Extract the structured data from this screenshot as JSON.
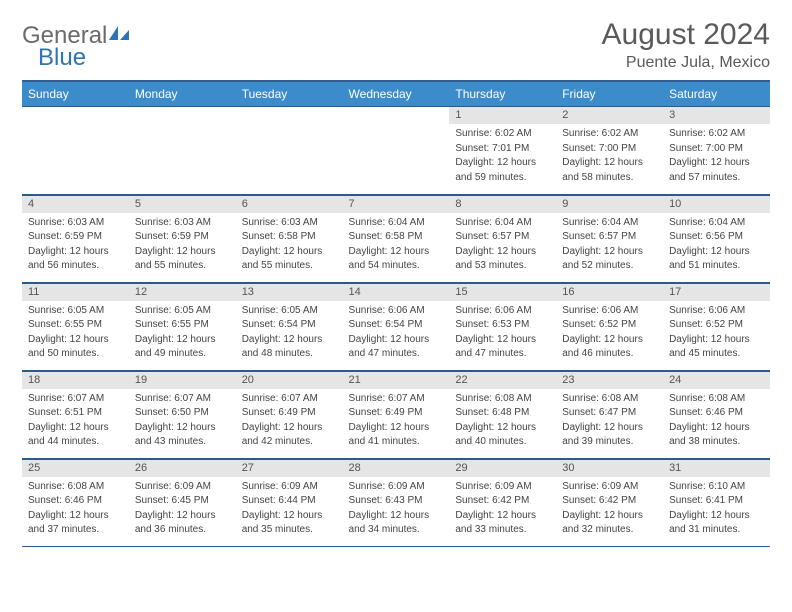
{
  "logo": {
    "general": "General",
    "blue": "Blue",
    "accent_color": "#2f74b5",
    "text_color": "#6a6a6a"
  },
  "header": {
    "title": "August 2024",
    "location": "Puente Jula, Mexico"
  },
  "calendar": {
    "header_bg": "#3c8ccc",
    "header_fg": "#ffffff",
    "daynum_bg": "#e5e5e5",
    "rule_color": "#2b5b8a",
    "days": [
      "Sunday",
      "Monday",
      "Tuesday",
      "Wednesday",
      "Thursday",
      "Friday",
      "Saturday"
    ],
    "weeks": [
      [
        {
          "blank": true
        },
        {
          "blank": true
        },
        {
          "blank": true
        },
        {
          "blank": true
        },
        {
          "num": "1",
          "sunrise": "6:02 AM",
          "sunset": "7:01 PM",
          "daylight": "12 hours and 59 minutes."
        },
        {
          "num": "2",
          "sunrise": "6:02 AM",
          "sunset": "7:00 PM",
          "daylight": "12 hours and 58 minutes."
        },
        {
          "num": "3",
          "sunrise": "6:02 AM",
          "sunset": "7:00 PM",
          "daylight": "12 hours and 57 minutes."
        }
      ],
      [
        {
          "num": "4",
          "sunrise": "6:03 AM",
          "sunset": "6:59 PM",
          "daylight": "12 hours and 56 minutes."
        },
        {
          "num": "5",
          "sunrise": "6:03 AM",
          "sunset": "6:59 PM",
          "daylight": "12 hours and 55 minutes."
        },
        {
          "num": "6",
          "sunrise": "6:03 AM",
          "sunset": "6:58 PM",
          "daylight": "12 hours and 55 minutes."
        },
        {
          "num": "7",
          "sunrise": "6:04 AM",
          "sunset": "6:58 PM",
          "daylight": "12 hours and 54 minutes."
        },
        {
          "num": "8",
          "sunrise": "6:04 AM",
          "sunset": "6:57 PM",
          "daylight": "12 hours and 53 minutes."
        },
        {
          "num": "9",
          "sunrise": "6:04 AM",
          "sunset": "6:57 PM",
          "daylight": "12 hours and 52 minutes."
        },
        {
          "num": "10",
          "sunrise": "6:04 AM",
          "sunset": "6:56 PM",
          "daylight": "12 hours and 51 minutes."
        }
      ],
      [
        {
          "num": "11",
          "sunrise": "6:05 AM",
          "sunset": "6:55 PM",
          "daylight": "12 hours and 50 minutes."
        },
        {
          "num": "12",
          "sunrise": "6:05 AM",
          "sunset": "6:55 PM",
          "daylight": "12 hours and 49 minutes."
        },
        {
          "num": "13",
          "sunrise": "6:05 AM",
          "sunset": "6:54 PM",
          "daylight": "12 hours and 48 minutes."
        },
        {
          "num": "14",
          "sunrise": "6:06 AM",
          "sunset": "6:54 PM",
          "daylight": "12 hours and 47 minutes."
        },
        {
          "num": "15",
          "sunrise": "6:06 AM",
          "sunset": "6:53 PM",
          "daylight": "12 hours and 47 minutes."
        },
        {
          "num": "16",
          "sunrise": "6:06 AM",
          "sunset": "6:52 PM",
          "daylight": "12 hours and 46 minutes."
        },
        {
          "num": "17",
          "sunrise": "6:06 AM",
          "sunset": "6:52 PM",
          "daylight": "12 hours and 45 minutes."
        }
      ],
      [
        {
          "num": "18",
          "sunrise": "6:07 AM",
          "sunset": "6:51 PM",
          "daylight": "12 hours and 44 minutes."
        },
        {
          "num": "19",
          "sunrise": "6:07 AM",
          "sunset": "6:50 PM",
          "daylight": "12 hours and 43 minutes."
        },
        {
          "num": "20",
          "sunrise": "6:07 AM",
          "sunset": "6:49 PM",
          "daylight": "12 hours and 42 minutes."
        },
        {
          "num": "21",
          "sunrise": "6:07 AM",
          "sunset": "6:49 PM",
          "daylight": "12 hours and 41 minutes."
        },
        {
          "num": "22",
          "sunrise": "6:08 AM",
          "sunset": "6:48 PM",
          "daylight": "12 hours and 40 minutes."
        },
        {
          "num": "23",
          "sunrise": "6:08 AM",
          "sunset": "6:47 PM",
          "daylight": "12 hours and 39 minutes."
        },
        {
          "num": "24",
          "sunrise": "6:08 AM",
          "sunset": "6:46 PM",
          "daylight": "12 hours and 38 minutes."
        }
      ],
      [
        {
          "num": "25",
          "sunrise": "6:08 AM",
          "sunset": "6:46 PM",
          "daylight": "12 hours and 37 minutes."
        },
        {
          "num": "26",
          "sunrise": "6:09 AM",
          "sunset": "6:45 PM",
          "daylight": "12 hours and 36 minutes."
        },
        {
          "num": "27",
          "sunrise": "6:09 AM",
          "sunset": "6:44 PM",
          "daylight": "12 hours and 35 minutes."
        },
        {
          "num": "28",
          "sunrise": "6:09 AM",
          "sunset": "6:43 PM",
          "daylight": "12 hours and 34 minutes."
        },
        {
          "num": "29",
          "sunrise": "6:09 AM",
          "sunset": "6:42 PM",
          "daylight": "12 hours and 33 minutes."
        },
        {
          "num": "30",
          "sunrise": "6:09 AM",
          "sunset": "6:42 PM",
          "daylight": "12 hours and 32 minutes."
        },
        {
          "num": "31",
          "sunrise": "6:10 AM",
          "sunset": "6:41 PM",
          "daylight": "12 hours and 31 minutes."
        }
      ]
    ]
  }
}
